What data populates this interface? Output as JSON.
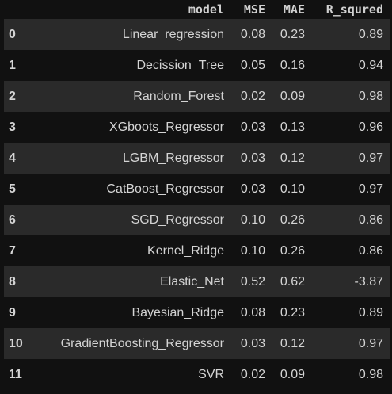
{
  "table": {
    "index_header": "",
    "columns": [
      "model",
      "MSE",
      "MAE",
      "R_squred"
    ],
    "rows": [
      {
        "index": "0",
        "model": "Linear_regression",
        "mse": "0.08",
        "mae": "0.23",
        "r2": "0.89"
      },
      {
        "index": "1",
        "model": "Decission_Tree",
        "mse": "0.05",
        "mae": "0.16",
        "r2": "0.94"
      },
      {
        "index": "2",
        "model": "Random_Forest",
        "mse": "0.02",
        "mae": "0.09",
        "r2": "0.98"
      },
      {
        "index": "3",
        "model": "XGboots_Regressor",
        "mse": "0.03",
        "mae": "0.13",
        "r2": "0.96"
      },
      {
        "index": "4",
        "model": "LGBM_Regressor",
        "mse": "0.03",
        "mae": "0.12",
        "r2": "0.97"
      },
      {
        "index": "5",
        "model": "CatBoost_Regressor",
        "mse": "0.03",
        "mae": "0.10",
        "r2": "0.97"
      },
      {
        "index": "6",
        "model": "SGD_Regressor",
        "mse": "0.10",
        "mae": "0.26",
        "r2": "0.86"
      },
      {
        "index": "7",
        "model": "Kernel_Ridge",
        "mse": "0.10",
        "mae": "0.26",
        "r2": "0.86"
      },
      {
        "index": "8",
        "model": "Elastic_Net",
        "mse": "0.52",
        "mae": "0.62",
        "r2": "-3.87"
      },
      {
        "index": "9",
        "model": "Bayesian_Ridge",
        "mse": "0.08",
        "mae": "0.23",
        "r2": "0.89"
      },
      {
        "index": "10",
        "model": "GradientBoosting_Regressor",
        "mse": "0.03",
        "mae": "0.12",
        "r2": "0.97"
      },
      {
        "index": "11",
        "model": "SVR",
        "mse": "0.02",
        "mae": "0.09",
        "r2": "0.98"
      }
    ]
  },
  "colors": {
    "background": "#111111",
    "row_stripe": "#2a2a2a",
    "text": "#d4d4d4"
  }
}
